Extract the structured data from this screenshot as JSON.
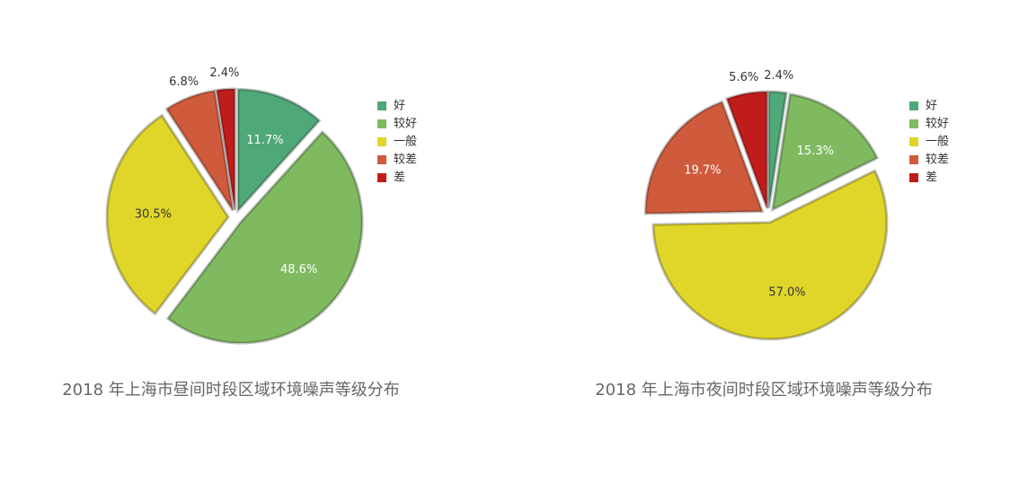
{
  "chart_data": [
    {
      "type": "pie",
      "title": "2018 年上海市昼间时段区域环境噪声等级分布",
      "categories": [
        "好",
        "较好",
        "一般",
        "较差",
        "差"
      ],
      "colors": [
        "#4fa877",
        "#7fba60",
        "#e0d62a",
        "#d05a3c",
        "#c01c1c"
      ],
      "values": [
        11.7,
        48.6,
        30.5,
        6.8,
        2.4
      ],
      "value_labels": [
        "11.7%",
        "48.6%",
        "30.5%",
        "6.8%",
        "2.4%"
      ],
      "legend": "right"
    },
    {
      "type": "pie",
      "title": "2018 年上海市夜间时段区域环境噪声等级分布",
      "categories": [
        "好",
        "较好",
        "一般",
        "较差",
        "差"
      ],
      "colors": [
        "#4fa877",
        "#7fba60",
        "#e0d62a",
        "#d05a3c",
        "#c01c1c"
      ],
      "values": [
        2.4,
        15.3,
        57.0,
        19.7,
        5.6
      ],
      "value_labels": [
        "2.4%",
        "15.3%",
        "57.0%",
        "19.7%",
        "5.6%"
      ],
      "legend": "right"
    }
  ]
}
